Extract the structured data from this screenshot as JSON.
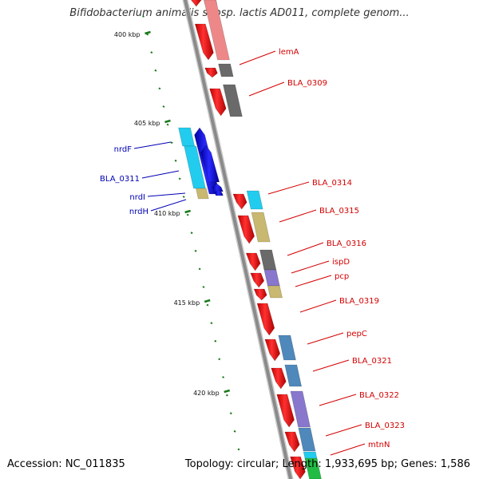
{
  "header": {
    "title": "Bifidobacterium animalis subsp. lactis AD011, complete genom..."
  },
  "footer": {
    "accession_label": "Accession: NC_011835",
    "summary_label": "Topology: circular; Length: 1,933,695 bp; Genes: 1,586"
  },
  "colors": {
    "backbone": "#8a8a8a",
    "tick_major": "#1a7a1a",
    "label_forward": "#d40000",
    "label_reverse": "#0000b4"
  },
  "tick_labels": [
    "400 kbp",
    "405 kbp",
    "410 kbp",
    "415 kbp",
    "420 kbp"
  ],
  "gene_labels": {
    "forward": [
      "lemA",
      "BLA_0309",
      "BLA_0314",
      "BLA_0315",
      "BLA_0316",
      "ispD",
      "pcp",
      "BLA_0319",
      "pepC",
      "BLA_0321",
      "BLA_0322",
      "BLA_0323",
      "mtnN"
    ],
    "reverse": [
      "nrdF",
      "BLA_0311",
      "nrdI",
      "nrdH"
    ]
  },
  "legend": {
    "feature_colors": {
      "cds_forward": "#ee0000",
      "cds_reverse": "#0000dd",
      "cog_light_red": "#ee8888",
      "cog_gray": "#6a6a6a",
      "cog_cyan": "#22ccee",
      "cog_khaki": "#c8b870",
      "cog_purple": "#8877cc",
      "cog_steel": "#4f88bb",
      "cog_green": "#22bb44"
    }
  }
}
